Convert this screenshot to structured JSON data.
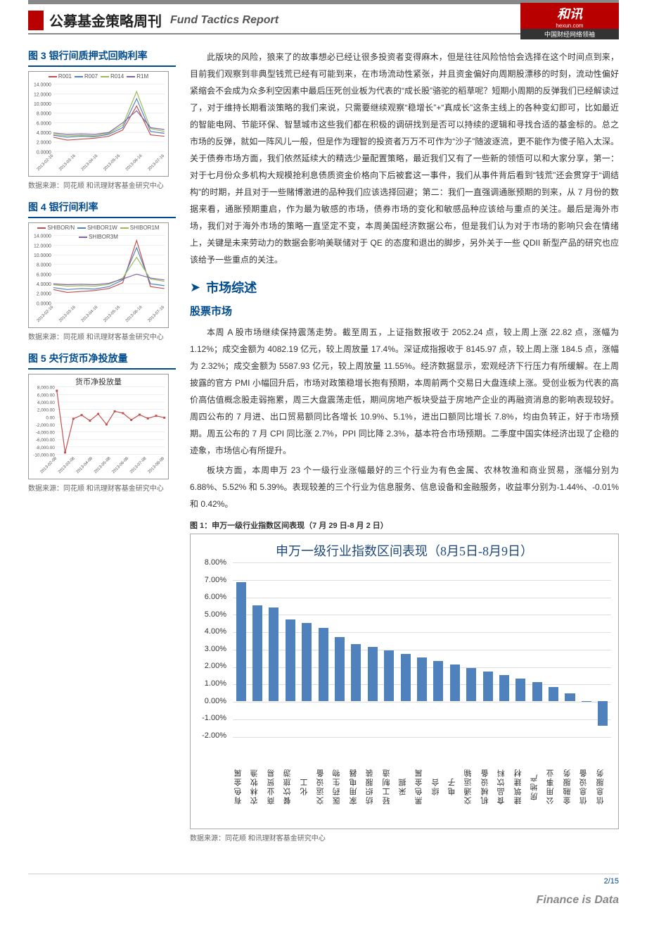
{
  "header": {
    "cn_title": "公募基金策略周刊",
    "en_title": "Fund Tactics Report",
    "logo_main": "和讯",
    "logo_url": "hexun.com",
    "logo_sub": "中国财经网络领袖"
  },
  "sidebar": {
    "fig3": {
      "title": "图 3  银行间质押式回购利率",
      "source": "数据来源：同花顺  和讯理财客基金研究中心",
      "legend": [
        "R001",
        "R007",
        "R014",
        "R1M"
      ],
      "legend_colors": [
        "#c0504d",
        "#4f81bd",
        "#9bbb59",
        "#8064a2"
      ],
      "ymax": 14,
      "ymin": 0,
      "ystep": 2,
      "xlabels": [
        "2013-02-16",
        "2013-03-16",
        "2013-04-16",
        "2013-05-16",
        "2013-06-16",
        "2013-07-16"
      ],
      "series": [
        [
          3.0,
          2.4,
          2.6,
          2.8,
          3.2,
          4.5,
          9.5,
          3.5,
          3.2
        ],
        [
          3.4,
          3.0,
          3.2,
          3.1,
          3.6,
          5.0,
          11.0,
          4.2,
          3.8
        ],
        [
          3.6,
          3.3,
          3.4,
          3.3,
          3.8,
          5.5,
          12.5,
          4.8,
          4.2
        ],
        [
          3.9,
          3.6,
          3.7,
          3.6,
          4.0,
          6.0,
          8.5,
          5.0,
          4.6
        ]
      ]
    },
    "fig4": {
      "title": "图 4  银行间利率",
      "source": "数据来源：同花顺  和讯理财客基金研究中心",
      "legend": [
        "SHIBOR/N",
        "SHIBOR1W",
        "SHIBOR1M",
        "SHIBOR3M"
      ],
      "legend_colors": [
        "#c0504d",
        "#4f81bd",
        "#9bbb59",
        "#8064a2"
      ],
      "ymax": 14,
      "ymin": 0,
      "ystep": 2,
      "xlabels": [
        "2013-02-16",
        "2013-03-16",
        "2013-04-16",
        "2013-05-16",
        "2013-06-16",
        "2013-07-16"
      ],
      "series": [
        [
          2.8,
          2.2,
          2.4,
          2.6,
          3.0,
          4.2,
          13.0,
          3.4,
          3.0
        ],
        [
          3.2,
          2.8,
          3.0,
          2.9,
          3.4,
          4.8,
          11.5,
          4.0,
          3.6
        ],
        [
          3.8,
          3.5,
          3.6,
          3.5,
          3.9,
          5.2,
          9.5,
          5.0,
          4.5
        ],
        [
          4.0,
          3.8,
          3.9,
          3.8,
          4.1,
          5.0,
          6.0,
          5.2,
          4.8
        ]
      ]
    },
    "fig5": {
      "title": "图 5  央行货币净投放量",
      "inner_title": "货币净投放量",
      "source": "数据来源：同花顺  和讯理财客基金研究中心",
      "ymax": 8000,
      "ymin": -10000,
      "ystep": 2000,
      "xlabels": [
        "2013-02-08",
        "2013-03-08",
        "2013-04-08",
        "2013-05-08",
        "2013-06-08",
        "2013-07-08",
        "2013-08-08"
      ],
      "series_color": "#c0504d",
      "points": [
        7000,
        -9500,
        -500,
        500,
        -1000,
        800,
        -2000,
        1500,
        1000,
        -800,
        600,
        -400,
        300,
        -200
      ]
    }
  },
  "main": {
    "para1": "此版块的风险，狼来了的故事想必已经让很多投资者变得麻木，但是往往风险恰恰会选择在这个时间点到来，目前我们观察到非典型钱荒已经有可能到来，在市场流动性紧张，并且资金偏好向周期股漂移的时刻，流动性偏好紧缩会不会成为众多利空因素中最后压死创业板为代表的“成长股”骆驼的稻草呢？短期小周期的反弹我们已经解读过了，对于维持长期看淡策略的我们来说，只需要继续观察“稳增长”+“真成长”这条主线上的各种变幻即可，比如最近的智能电网、节能环保、智慧城市这些我们都在积极的调研找到是否可以持续的逻辑和寻找合适的基金标的。总之市场的反弹，就如一阵风儿一般，但是作为理智的投资者万万不可作为“沙子”随波逐流，更不能作为傻子陷入太深。关于债券市场方面，我们依然延续大的精选少量配置策略，最近我们又有了一些新的领悟可以和大家分享，第一：对于七月份众多机构大规模抢利息债质资金价格向下后被套这一事件，我们从事件背后看到“钱荒”还会贯穿于“调结构”的时期，并且对于一些赌博激进的品种我们应该选择回避；第二：我们一直强调通胀预期的到来，从 7 月份的数据来看，通胀预期重启，作为最为敏感的市场，债券市场的变化和敏感品种应该给与重点的关注。最后是海外市场，我们对于海外市场的策略一直坚定不变，本周美国经济数据公布，但是我们认为对于市场的影响只会在情绪上，关键是未来劳动力的数据会影响美联储对于 QE 的态度和退出的脚步，另外关于一些 QDII 新型产品的研究也应该给予一些重点的关注。",
    "section_header": "市场综述",
    "sub_header": "股票市场",
    "para2": "本周 A 股市场继续保持震荡走势。截至周五，上证指数报收于 2052.24 点，较上周上涨 22.82 点，涨幅为 1.12%；成交金额为 4082.19 亿元，较上周放量 17.4%。深证成指报收于 8145.97 点，较上周上涨 184.5 点，涨幅为 2.32%；成交金额为 5587.93 亿元，较上周放量 11.55%。经济数据显示，宏观经济下行压力有所缓解。在上周披露的官方 PMI 小幅回升后，市场对政策稳增长抱有预期，本周前两个交易日大盘连续上涨。受创业板为代表的高价高估值概念股走弱拖累，周三大盘震荡走低，期间房地产板块受益于房地产企业的再融资消息的影响表现较好。周四公布的 7 月进、出口贸易额同比各增长 10.9%、5.1%，进出口额同比增长 7.8%，均由负转正，好于市场预期。周五公布的 7 月 CPI 同比涨 2.7%，PPI 同比降 2.3%，基本符合市场预期。二季度中国实体经济出现了企稳的迹象，市场信心有所提升。",
    "para3": "板块方面，本周申万 23 个一级行业涨幅最好的三个行业为有色金属、农林牧渔和商业贸易，涨幅分别为 6.88%、5.52% 和 5.39%。表现较差的三个行业为信息服务、信息设备和金融服务，收益率分别为-1.44%、-0.01%和 0.42%。",
    "fig1_caption": "图 1：申万一级行业指数区间表现（7 月 29 日-8 月 2 日）",
    "big_chart": {
      "title": "申万一级行业指数区间表现（8月5日-8月9日）",
      "ymin": -2.5,
      "ymax": 8.0,
      "yticks": [
        "8.00%",
        "7.00%",
        "6.00%",
        "5.00%",
        "4.00%",
        "3.00%",
        "2.00%",
        "1.00%",
        "0.00%",
        "-1.00%",
        "-2.00%"
      ],
      "ytick_vals": [
        8,
        7,
        6,
        5,
        4,
        3,
        2,
        1,
        0,
        -1,
        -2
      ],
      "bar_color": "#4f81bd",
      "categories": [
        "有色金属",
        "农林牧渔",
        "商业贸易",
        "餐饮旅游",
        "化工",
        "交运设备",
        "医药生物",
        "家用电器",
        "纺织服装",
        "轻工制造",
        "采掘",
        "黑色金属",
        "综合",
        "电子",
        "交通运输",
        "机械设备",
        "食品饮料",
        "建筑建材",
        "房地产",
        "公用事业",
        "金融服务",
        "信息设备",
        "信息服务"
      ],
      "values": [
        6.88,
        5.52,
        5.39,
        4.7,
        4.5,
        4.2,
        3.7,
        3.3,
        3.1,
        2.9,
        2.7,
        2.5,
        2.3,
        2.1,
        1.9,
        1.7,
        1.5,
        1.3,
        1.1,
        0.8,
        0.42,
        -0.01,
        -1.44
      ]
    },
    "big_chart_source": "数据来源：同花顺  和讯理财客基金研究中心"
  },
  "footer": {
    "page": "2/15",
    "tag": "Finance is Data"
  }
}
